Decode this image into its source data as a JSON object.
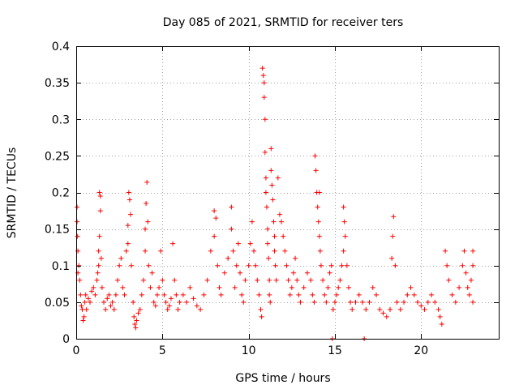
{
  "chart_data": {
    "type": "scatter",
    "title": "Day 085 of 2021, SRMTID for receiver ters",
    "xlabel": "GPS time / hours",
    "ylabel": "SRMTID / TECUs",
    "xlim": [
      0,
      24.5
    ],
    "ylim": [
      0,
      0.4
    ],
    "xticks": [
      0,
      5,
      10,
      15,
      20
    ],
    "xtick_labels": [
      "0",
      "5",
      "10",
      "15",
      "20"
    ],
    "yticks": [
      0,
      0.05,
      0.1,
      0.15,
      0.2,
      0.25,
      0.3,
      0.35,
      0.4
    ],
    "ytick_labels": [
      "0",
      "0.05",
      "0.1",
      "0.15",
      "0.2",
      "0.25",
      "0.3",
      "0.35",
      "0.4"
    ],
    "grid": true,
    "marker": "+",
    "colors": {
      "series": "#ff0000",
      "axis": "#000000",
      "grid": "#a0a0a0"
    },
    "series": [
      {
        "name": "SRMTID",
        "points": [
          [
            0.05,
            0.18
          ],
          [
            0.05,
            0.16
          ],
          [
            0.08,
            0.14
          ],
          [
            0.1,
            0.12
          ],
          [
            0.1,
            0.09
          ],
          [
            0.15,
            0.1
          ],
          [
            0.2,
            0.08
          ],
          [
            0.25,
            0.06
          ],
          [
            0.3,
            0.045
          ],
          [
            0.35,
            0.04
          ],
          [
            0.4,
            0.025
          ],
          [
            0.45,
            0.03
          ],
          [
            0.5,
            0.05
          ],
          [
            0.55,
            0.06
          ],
          [
            0.6,
            0.04
          ],
          [
            0.7,
            0.055
          ],
          [
            0.8,
            0.05
          ],
          [
            0.9,
            0.065
          ],
          [
            1.0,
            0.07
          ],
          [
            1.1,
            0.06
          ],
          [
            1.2,
            0.08
          ],
          [
            1.25,
            0.09
          ],
          [
            1.3,
            0.1
          ],
          [
            1.3,
            0.12
          ],
          [
            1.35,
            0.14
          ],
          [
            1.35,
            0.2
          ],
          [
            1.4,
            0.175
          ],
          [
            1.4,
            0.195
          ],
          [
            1.45,
            0.11
          ],
          [
            1.5,
            0.07
          ],
          [
            1.6,
            0.05
          ],
          [
            1.7,
            0.04
          ],
          [
            1.8,
            0.055
          ],
          [
            1.9,
            0.06
          ],
          [
            2.0,
            0.045
          ],
          [
            2.1,
            0.05
          ],
          [
            2.2,
            0.04
          ],
          [
            2.3,
            0.06
          ],
          [
            2.4,
            0.08
          ],
          [
            2.5,
            0.1
          ],
          [
            2.6,
            0.11
          ],
          [
            2.7,
            0.07
          ],
          [
            2.8,
            0.06
          ],
          [
            2.9,
            0.12
          ],
          [
            3.0,
            0.13
          ],
          [
            3.0,
            0.155
          ],
          [
            3.05,
            0.2
          ],
          [
            3.1,
            0.19
          ],
          [
            3.15,
            0.17
          ],
          [
            3.2,
            0.1
          ],
          [
            3.3,
            0.05
          ],
          [
            3.35,
            0.03
          ],
          [
            3.4,
            0.02
          ],
          [
            3.45,
            0.015
          ],
          [
            3.5,
            0.025
          ],
          [
            3.6,
            0.035
          ],
          [
            3.7,
            0.04
          ],
          [
            3.8,
            0.06
          ],
          [
            3.9,
            0.08
          ],
          [
            4.0,
            0.12
          ],
          [
            4.0,
            0.15
          ],
          [
            4.05,
            0.185
          ],
          [
            4.1,
            0.214
          ],
          [
            4.15,
            0.16
          ],
          [
            4.2,
            0.1
          ],
          [
            4.3,
            0.07
          ],
          [
            4.4,
            0.09
          ],
          [
            4.5,
            0.05
          ],
          [
            4.6,
            0.045
          ],
          [
            4.7,
            0.06
          ],
          [
            4.8,
            0.07
          ],
          [
            4.9,
            0.12
          ],
          [
            5.0,
            0.08
          ],
          [
            5.1,
            0.06
          ],
          [
            5.2,
            0.05
          ],
          [
            5.3,
            0.04
          ],
          [
            5.4,
            0.045
          ],
          [
            5.5,
            0.055
          ],
          [
            5.6,
            0.13
          ],
          [
            5.7,
            0.08
          ],
          [
            5.8,
            0.06
          ],
          [
            5.9,
            0.04
          ],
          [
            6.0,
            0.05
          ],
          [
            6.2,
            0.06
          ],
          [
            6.4,
            0.05
          ],
          [
            6.6,
            0.07
          ],
          [
            6.8,
            0.055
          ],
          [
            7.0,
            0.045
          ],
          [
            7.2,
            0.04
          ],
          [
            7.4,
            0.06
          ],
          [
            7.6,
            0.08
          ],
          [
            7.8,
            0.12
          ],
          [
            8.0,
            0.14
          ],
          [
            8.0,
            0.175
          ],
          [
            8.1,
            0.165
          ],
          [
            8.2,
            0.1
          ],
          [
            8.3,
            0.07
          ],
          [
            8.4,
            0.06
          ],
          [
            8.6,
            0.09
          ],
          [
            8.8,
            0.11
          ],
          [
            9.0,
            0.15
          ],
          [
            9.0,
            0.18
          ],
          [
            9.1,
            0.12
          ],
          [
            9.2,
            0.07
          ],
          [
            9.3,
            0.1
          ],
          [
            9.4,
            0.13
          ],
          [
            9.5,
            0.09
          ],
          [
            9.6,
            0.06
          ],
          [
            9.7,
            0.05
          ],
          [
            9.8,
            0.08
          ],
          [
            10.0,
            0.1
          ],
          [
            10.1,
            0.13
          ],
          [
            10.2,
            0.16
          ],
          [
            10.3,
            0.12
          ],
          [
            10.4,
            0.1
          ],
          [
            10.5,
            0.08
          ],
          [
            10.6,
            0.06
          ],
          [
            10.7,
            0.04
          ],
          [
            10.75,
            0.03
          ],
          [
            10.8,
            0.37
          ],
          [
            10.85,
            0.36
          ],
          [
            10.9,
            0.35
          ],
          [
            10.9,
            0.33
          ],
          [
            10.95,
            0.3
          ],
          [
            10.95,
            0.255
          ],
          [
            11.0,
            0.22
          ],
          [
            11.0,
            0.2
          ],
          [
            11.05,
            0.18
          ],
          [
            11.1,
            0.15
          ],
          [
            11.1,
            0.13
          ],
          [
            11.15,
            0.11
          ],
          [
            11.2,
            0.08
          ],
          [
            11.2,
            0.06
          ],
          [
            11.25,
            0.05
          ],
          [
            11.3,
            0.26
          ],
          [
            11.3,
            0.23
          ],
          [
            11.35,
            0.21
          ],
          [
            11.4,
            0.19
          ],
          [
            11.45,
            0.16
          ],
          [
            11.5,
            0.14
          ],
          [
            11.5,
            0.12
          ],
          [
            11.55,
            0.1
          ],
          [
            11.6,
            0.08
          ],
          [
            11.7,
            0.22
          ],
          [
            11.8,
            0.17
          ],
          [
            11.9,
            0.16
          ],
          [
            12.0,
            0.14
          ],
          [
            12.1,
            0.12
          ],
          [
            12.2,
            0.1
          ],
          [
            12.3,
            0.08
          ],
          [
            12.4,
            0.06
          ],
          [
            12.5,
            0.07
          ],
          [
            12.6,
            0.09
          ],
          [
            12.7,
            0.11
          ],
          [
            12.8,
            0.08
          ],
          [
            12.9,
            0.06
          ],
          [
            13.0,
            0.05
          ],
          [
            13.2,
            0.07
          ],
          [
            13.4,
            0.09
          ],
          [
            13.6,
            0.08
          ],
          [
            13.7,
            0.06
          ],
          [
            13.8,
            0.05
          ],
          [
            13.85,
            0.25
          ],
          [
            13.9,
            0.23
          ],
          [
            13.95,
            0.2
          ],
          [
            14.0,
            0.18
          ],
          [
            14.05,
            0.16
          ],
          [
            14.1,
            0.2
          ],
          [
            14.1,
            0.14
          ],
          [
            14.15,
            0.12
          ],
          [
            14.2,
            0.1
          ],
          [
            14.3,
            0.08
          ],
          [
            14.4,
            0.06
          ],
          [
            14.5,
            0.05
          ],
          [
            14.6,
            0.07
          ],
          [
            14.7,
            0.09
          ],
          [
            14.8,
            0.1
          ],
          [
            14.85,
            0.0
          ],
          [
            14.9,
            0.04
          ],
          [
            15.0,
            0.05
          ],
          [
            15.1,
            0.06
          ],
          [
            15.2,
            0.07
          ],
          [
            15.3,
            0.08
          ],
          [
            15.4,
            0.1
          ],
          [
            15.5,
            0.12
          ],
          [
            15.5,
            0.18
          ],
          [
            15.55,
            0.16
          ],
          [
            15.6,
            0.14
          ],
          [
            15.7,
            0.1
          ],
          [
            15.8,
            0.07
          ],
          [
            15.9,
            0.05
          ],
          [
            16.0,
            0.04
          ],
          [
            16.2,
            0.05
          ],
          [
            16.4,
            0.06
          ],
          [
            16.6,
            0.05
          ],
          [
            16.7,
            0.0
          ],
          [
            16.8,
            0.04
          ],
          [
            17.0,
            0.05
          ],
          [
            17.2,
            0.07
          ],
          [
            17.4,
            0.06
          ],
          [
            17.6,
            0.04
          ],
          [
            17.8,
            0.035
          ],
          [
            18.0,
            0.03
          ],
          [
            18.2,
            0.04
          ],
          [
            18.3,
            0.11
          ],
          [
            18.35,
            0.14
          ],
          [
            18.4,
            0.167
          ],
          [
            18.5,
            0.1
          ],
          [
            18.6,
            0.05
          ],
          [
            18.8,
            0.04
          ],
          [
            19.0,
            0.05
          ],
          [
            19.2,
            0.06
          ],
          [
            19.4,
            0.07
          ],
          [
            19.6,
            0.06
          ],
          [
            19.8,
            0.05
          ],
          [
            20.0,
            0.045
          ],
          [
            20.2,
            0.04
          ],
          [
            20.4,
            0.05
          ],
          [
            20.6,
            0.06
          ],
          [
            20.8,
            0.05
          ],
          [
            21.0,
            0.04
          ],
          [
            21.1,
            0.03
          ],
          [
            21.2,
            0.02
          ],
          [
            21.4,
            0.12
          ],
          [
            21.5,
            0.1
          ],
          [
            21.6,
            0.08
          ],
          [
            21.8,
            0.06
          ],
          [
            22.0,
            0.05
          ],
          [
            22.2,
            0.07
          ],
          [
            22.4,
            0.1
          ],
          [
            22.5,
            0.12
          ],
          [
            22.6,
            0.09
          ],
          [
            22.7,
            0.07
          ],
          [
            22.8,
            0.06
          ],
          [
            22.9,
            0.08
          ],
          [
            23.0,
            0.12
          ],
          [
            23.0,
            0.1
          ],
          [
            23.0,
            0.05
          ]
        ]
      }
    ]
  }
}
